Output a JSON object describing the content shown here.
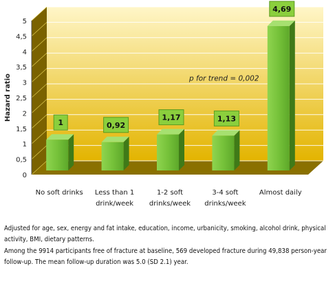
{
  "chart_data": {
    "type": "bar",
    "ylabel": "Hazard ratio",
    "ylim": [
      0,
      5
    ],
    "yticks": [
      "0",
      "0,5",
      "1",
      "1,5",
      "2",
      "2,5",
      "3",
      "3,5",
      "4",
      "4,5",
      "5"
    ],
    "categories": [
      [
        "No soft drinks"
      ],
      [
        "Less than 1",
        "drink/week"
      ],
      [
        "1-2 soft",
        "drinks/week"
      ],
      [
        "3-4 soft",
        "drinks/week"
      ],
      [
        "Almost daily"
      ]
    ],
    "values": [
      1,
      0.92,
      1.17,
      1.13,
      4.69
    ],
    "data_labels": [
      "1",
      "0,92",
      "1,17",
      "1,13",
      "4,69"
    ],
    "annotation": "p for trend = 0,002",
    "colors": {
      "bar_front": "#76c23a",
      "bar_side": "#3f7a18",
      "bar_top": "#a6e070",
      "wall_top": "#fff6c8",
      "wall_bottom": "#e3b400",
      "wall_side": "#7a6200",
      "floor": "#8a7000"
    }
  },
  "caption": {
    "line1": "Adjusted for age, sex, energy and fat intake, education, income, urbanicity, smoking, alcohol drink, physical activity, BMI, dietary patterns.",
    "line2": "Among the 9914 participants free of fracture at baseline, 569 developed fracture during 49,838 person-year follow-up. The mean follow-up duration was 5.0 (SD 2.1) year."
  }
}
